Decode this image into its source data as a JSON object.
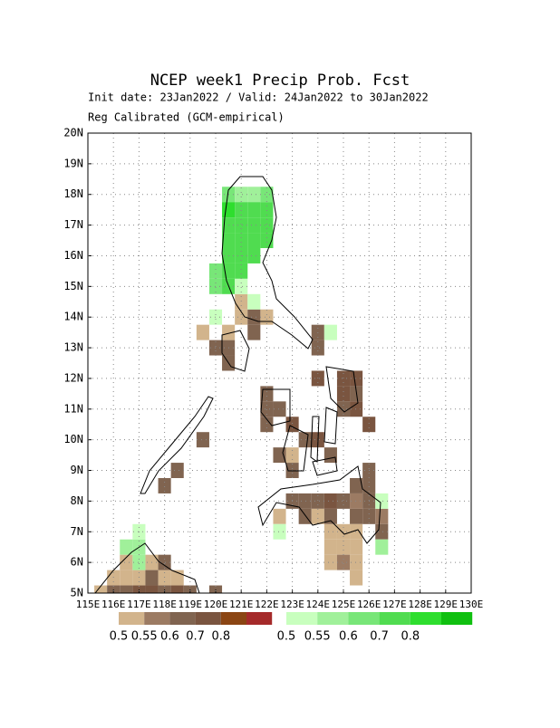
{
  "map": {
    "title": "NCEP week1 Precip Prob. Fcst",
    "subtitle": "Init date: 23Jan2022 / Valid: 24Jan2022 to 30Jan2022",
    "note": "Reg Calibrated (GCM-empirical)",
    "xlim": [
      115,
      130
    ],
    "ylim": [
      5,
      20
    ],
    "grid": true,
    "xticks": [
      {
        "value": 115,
        "label": "115E"
      },
      {
        "value": 116,
        "label": "116E"
      },
      {
        "value": 117,
        "label": "117E"
      },
      {
        "value": 118,
        "label": "118E"
      },
      {
        "value": 119,
        "label": "119E"
      },
      {
        "value": 120,
        "label": "120E"
      },
      {
        "value": 121,
        "label": "121E"
      },
      {
        "value": 122,
        "label": "122E"
      },
      {
        "value": 123,
        "label": "123E"
      },
      {
        "value": 124,
        "label": "124E"
      },
      {
        "value": 125,
        "label": "125E"
      },
      {
        "value": 126,
        "label": "126E"
      },
      {
        "value": 127,
        "label": "127E"
      },
      {
        "value": 128,
        "label": "128E"
      },
      {
        "value": 129,
        "label": "129E"
      },
      {
        "value": 130,
        "label": "130E"
      }
    ],
    "yticks": [
      {
        "value": 5,
        "label": "5N"
      },
      {
        "value": 6,
        "label": "6N"
      },
      {
        "value": 7,
        "label": "7N"
      },
      {
        "value": 8,
        "label": "8N"
      },
      {
        "value": 9,
        "label": "9N"
      },
      {
        "value": 10,
        "label": "10N"
      },
      {
        "value": 11,
        "label": "11N"
      },
      {
        "value": 12,
        "label": "12N"
      },
      {
        "value": 13,
        "label": "13N"
      },
      {
        "value": 14,
        "label": "14N"
      },
      {
        "value": 15,
        "label": "15N"
      },
      {
        "value": 16,
        "label": "16N"
      },
      {
        "value": 17,
        "label": "17N"
      },
      {
        "value": 18,
        "label": "18N"
      },
      {
        "value": 19,
        "label": "19N"
      },
      {
        "value": 20,
        "label": "20N"
      }
    ],
    "colorbars": [
      {
        "name": "dry",
        "colors": [
          "#d2b48c",
          "#9c7b63",
          "#806450",
          "#7a5540",
          "#8b4513",
          "#a52a2a"
        ],
        "labels": [
          0.5,
          0.55,
          0.6,
          0.7,
          0.8
        ]
      },
      {
        "name": "wet",
        "colors": [
          "#c8ffbe",
          "#a0f09a",
          "#78e678",
          "#50dc50",
          "#2ede2e",
          "#10c010"
        ],
        "labels": [
          0.5,
          0.55,
          0.6,
          0.7,
          0.8
        ]
      }
    ],
    "dry_cells": [
      [
        120.0,
        13.0,
        0.65
      ],
      [
        120.5,
        13.0,
        0.65
      ],
      [
        120.5,
        12.5,
        0.65
      ],
      [
        120.5,
        13.5,
        0.52
      ],
      [
        121.0,
        14.0,
        0.52
      ],
      [
        121.0,
        14.5,
        0.52
      ],
      [
        121.5,
        13.5,
        0.65
      ],
      [
        122.0,
        14.0,
        0.52
      ],
      [
        121.5,
        14.0,
        0.65
      ],
      [
        119.5,
        13.5,
        0.52
      ],
      [
        124.0,
        13.5,
        0.65
      ],
      [
        124.0,
        13.0,
        0.65
      ],
      [
        122.0,
        11.5,
        0.65
      ],
      [
        122.0,
        11.0,
        0.65
      ],
      [
        122.5,
        11.0,
        0.65
      ],
      [
        122.0,
        10.5,
        0.65
      ],
      [
        123.0,
        10.5,
        0.75
      ],
      [
        123.5,
        10.0,
        0.65
      ],
      [
        122.5,
        9.5,
        0.65
      ],
      [
        123.0,
        9.5,
        0.52
      ],
      [
        123.0,
        9.0,
        0.65
      ],
      [
        124.0,
        10.0,
        0.75
      ],
      [
        124.5,
        9.5,
        0.65
      ],
      [
        124.0,
        12.0,
        0.75
      ],
      [
        125.0,
        12.0,
        0.75
      ],
      [
        125.5,
        12.0,
        0.75
      ],
      [
        125.0,
        11.5,
        0.75
      ],
      [
        125.5,
        11.5,
        0.65
      ],
      [
        125.0,
        11.0,
        0.65
      ],
      [
        125.5,
        11.0,
        0.75
      ],
      [
        126.0,
        10.5,
        0.75
      ],
      [
        123.0,
        8.0,
        0.65
      ],
      [
        123.5,
        8.0,
        0.65
      ],
      [
        124.0,
        8.0,
        0.65
      ],
      [
        124.5,
        8.0,
        0.75
      ],
      [
        125.0,
        8.0,
        0.65
      ],
      [
        125.5,
        8.0,
        0.57
      ],
      [
        126.0,
        8.0,
        0.65
      ],
      [
        125.5,
        8.5,
        0.65
      ],
      [
        126.0,
        8.5,
        0.65
      ],
      [
        126.0,
        9.0,
        0.65
      ],
      [
        123.5,
        7.5,
        0.65
      ],
      [
        124.0,
        7.5,
        0.52
      ],
      [
        124.5,
        7.5,
        0.65
      ],
      [
        125.5,
        7.5,
        0.65
      ],
      [
        126.0,
        7.5,
        0.65
      ],
      [
        126.5,
        7.5,
        0.57
      ],
      [
        126.5,
        7.0,
        0.65
      ],
      [
        122.5,
        7.5,
        0.52
      ],
      [
        124.5,
        7.0,
        0.52
      ],
      [
        125.0,
        7.0,
        0.52
      ],
      [
        125.5,
        7.0,
        0.52
      ],
      [
        124.5,
        6.5,
        0.52
      ],
      [
        125.0,
        6.5,
        0.52
      ],
      [
        125.5,
        6.5,
        0.52
      ],
      [
        124.5,
        6.0,
        0.52
      ],
      [
        125.0,
        6.0,
        0.57
      ],
      [
        125.5,
        6.0,
        0.52
      ],
      [
        125.5,
        5.5,
        0.52
      ],
      [
        119.5,
        10.0,
        0.65
      ],
      [
        118.5,
        9.0,
        0.65
      ],
      [
        118.0,
        8.5,
        0.65
      ],
      [
        116.5,
        6.0,
        0.52
      ],
      [
        117.5,
        6.0,
        0.52
      ],
      [
        116.0,
        5.5,
        0.52
      ],
      [
        116.5,
        5.5,
        0.52
      ],
      [
        117.0,
        5.5,
        0.52
      ],
      [
        117.5,
        5.5,
        0.65
      ],
      [
        118.0,
        5.5,
        0.52
      ],
      [
        118.5,
        5.5,
        0.52
      ],
      [
        118.0,
        6.0,
        0.65
      ],
      [
        115.5,
        5.0,
        0.52
      ],
      [
        116.0,
        5.0,
        0.65
      ],
      [
        116.5,
        5.0,
        0.65
      ],
      [
        117.0,
        5.0,
        0.75
      ],
      [
        117.5,
        5.0,
        0.75
      ],
      [
        118.0,
        5.0,
        0.65
      ],
      [
        118.5,
        5.0,
        0.75
      ],
      [
        119.0,
        5.0,
        0.65
      ],
      [
        120.0,
        5.0,
        0.65
      ]
    ],
    "wet_cells": [
      [
        120.5,
        18.0,
        0.65
      ],
      [
        121.0,
        18.0,
        0.57
      ],
      [
        121.5,
        18.0,
        0.57
      ],
      [
        122.0,
        18.0,
        0.65
      ],
      [
        120.5,
        17.5,
        0.85
      ],
      [
        121.0,
        17.5,
        0.75
      ],
      [
        121.5,
        17.5,
        0.75
      ],
      [
        122.0,
        17.5,
        0.75
      ],
      [
        120.5,
        17.0,
        0.75
      ],
      [
        121.0,
        17.0,
        0.75
      ],
      [
        121.5,
        17.0,
        0.75
      ],
      [
        122.0,
        17.0,
        0.75
      ],
      [
        120.5,
        16.5,
        0.75
      ],
      [
        121.0,
        16.5,
        0.75
      ],
      [
        121.5,
        16.5,
        0.75
      ],
      [
        122.0,
        16.5,
        0.75
      ],
      [
        120.5,
        16.0,
        0.75
      ],
      [
        121.0,
        16.0,
        0.75
      ],
      [
        121.5,
        16.0,
        0.75
      ],
      [
        120.0,
        15.5,
        0.65
      ],
      [
        120.5,
        15.5,
        0.75
      ],
      [
        121.0,
        15.5,
        0.75
      ],
      [
        120.0,
        15.0,
        0.65
      ],
      [
        120.5,
        15.0,
        0.75
      ],
      [
        121.0,
        15.0,
        0.52
      ],
      [
        121.5,
        14.5,
        0.52
      ],
      [
        120.0,
        14.0,
        0.52
      ],
      [
        124.5,
        13.5,
        0.52
      ],
      [
        126.5,
        8.0,
        0.52
      ],
      [
        122.5,
        7.0,
        0.52
      ],
      [
        126.5,
        6.5,
        0.57
      ],
      [
        116.5,
        6.5,
        0.57
      ],
      [
        117.0,
        6.5,
        0.57
      ],
      [
        117.0,
        7.0,
        0.52
      ],
      [
        117.0,
        6.0,
        0.57
      ]
    ]
  }
}
